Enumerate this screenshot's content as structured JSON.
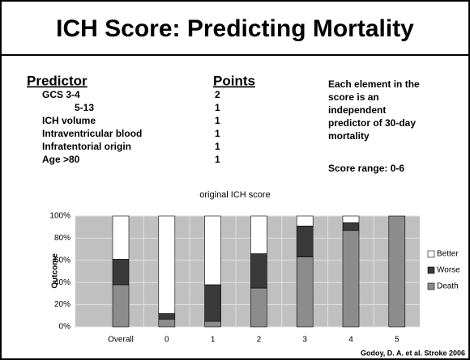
{
  "header": {
    "title": "ICH Score: Predicting Mortality"
  },
  "table": {
    "columns": [
      "Predictor",
      "Points"
    ],
    "rows": [
      [
        "GCS  3-4",
        "2"
      ],
      [
        "5-13",
        "1"
      ],
      [
        "ICH volume",
        "1"
      ],
      [
        "Intraventricular blood",
        "1"
      ],
      [
        "Infratentorial origin",
        "1"
      ],
      [
        "Age >80",
        "1"
      ]
    ]
  },
  "notes": [
    "Each element in the",
    "score is an",
    "independent",
    "predictor of 30-day",
    "mortality"
  ],
  "score_range": "Score range: 0-6",
  "citation": "Godoy, D. A. et al. Stroke 2006",
  "chart_data": {
    "type": "stacked_bar",
    "title": "original ICH score",
    "y_label": "Outcome",
    "categories": [
      "Overall",
      "0",
      "1",
      "2",
      "3",
      "4",
      "5"
    ],
    "series": [
      {
        "name": "Death",
        "color": "#8c8c8c",
        "values": [
          38,
          7,
          5,
          35,
          63,
          87,
          100
        ]
      },
      {
        "name": "Worse",
        "color": "#3a3a3a",
        "values": [
          23,
          5,
          33,
          31,
          28,
          7,
          0
        ]
      },
      {
        "name": "Better",
        "color": "#ffffff",
        "values": [
          39,
          88,
          62,
          34,
          9,
          6,
          0
        ]
      }
    ],
    "ylim": [
      0,
      100
    ],
    "yticks": [
      {
        "value": 0,
        "label": "0%"
      },
      {
        "value": 20,
        "label": "20%"
      },
      {
        "value": 40,
        "label": "40%"
      },
      {
        "value": 60,
        "label": "60%"
      },
      {
        "value": 80,
        "label": "80%"
      },
      {
        "value": 100,
        "label": "100%"
      }
    ],
    "grid": true
  }
}
